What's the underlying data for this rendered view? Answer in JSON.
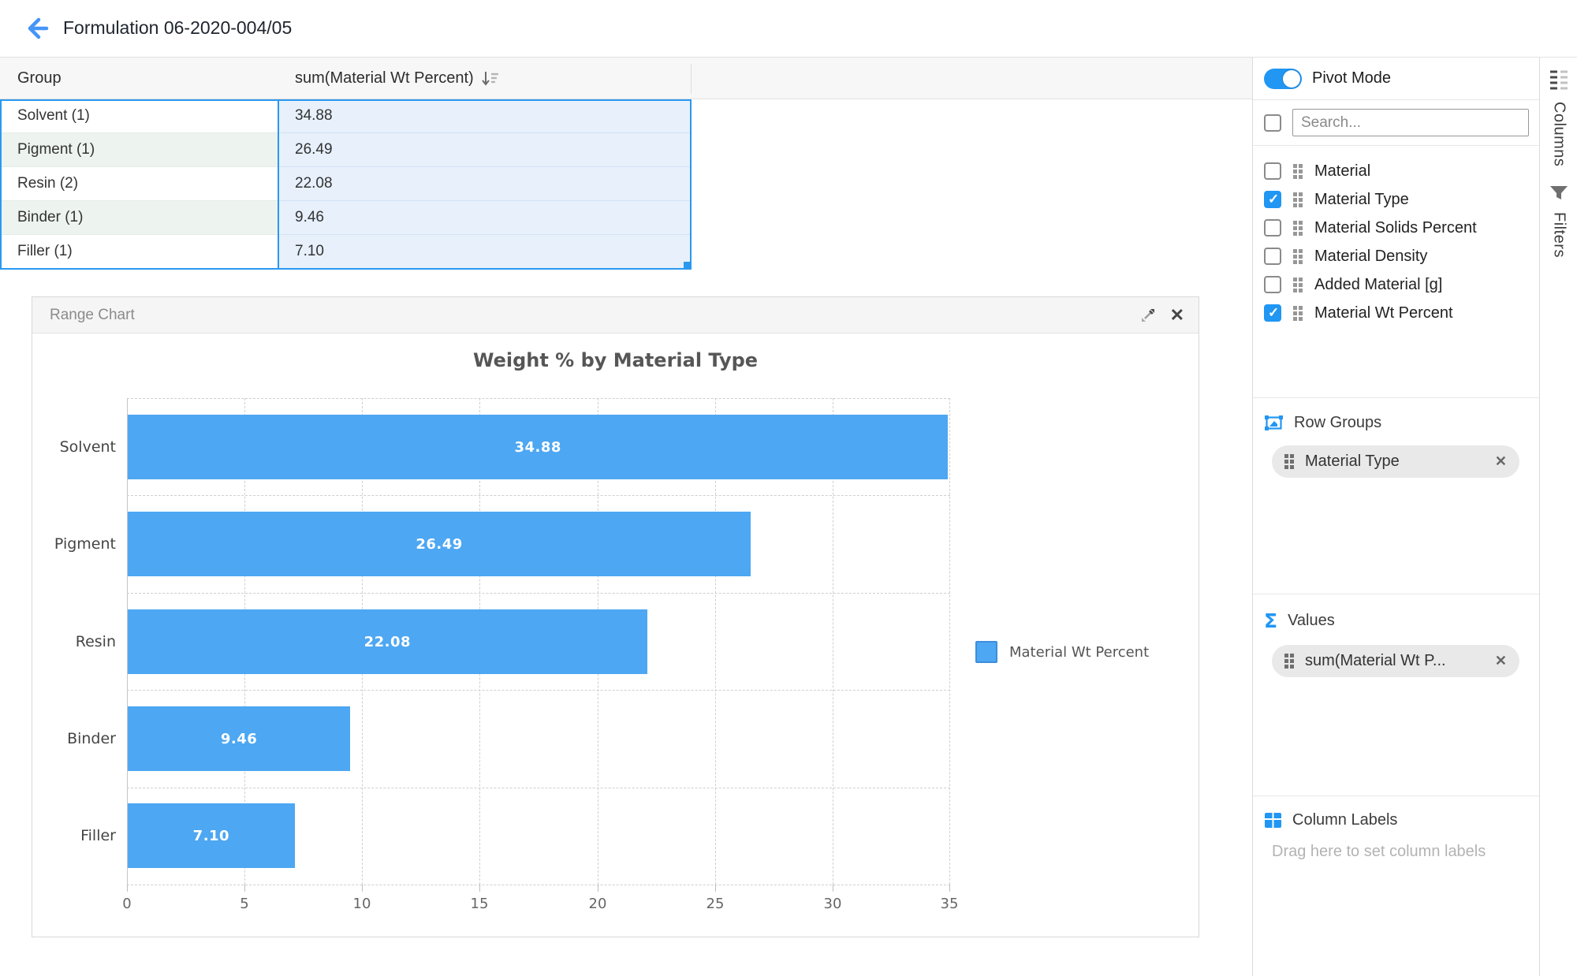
{
  "app_header": {
    "title": "Formulation 06-2020-004/05"
  },
  "table": {
    "group_header": "Group",
    "value_header": "sum(Material Wt Percent)",
    "sort_state": "desc",
    "rows": [
      {
        "group": "Solvent (1)",
        "value": "34.88"
      },
      {
        "group": "Pigment (1)",
        "value": "26.49"
      },
      {
        "group": "Resin (2)",
        "value": "22.08"
      },
      {
        "group": "Binder (1)",
        "value": "9.46"
      },
      {
        "group": "Filler (1)",
        "value": "7.10"
      }
    ]
  },
  "chart_panel": {
    "title": "Range Chart"
  },
  "chart_data": {
    "type": "bar",
    "orientation": "horizontal",
    "title": "Weight % by Material Type",
    "categories": [
      "Solvent",
      "Pigment",
      "Resin",
      "Binder",
      "Filler"
    ],
    "values": [
      34.88,
      26.49,
      22.08,
      9.46,
      7.1
    ],
    "value_labels": [
      "34.88",
      "26.49",
      "22.08",
      "9.46",
      "7.10"
    ],
    "series": [
      {
        "name": "Material Wt Percent",
        "color": "#4da7f2"
      }
    ],
    "legend_label": "Material Wt Percent",
    "legend_position": "right",
    "xlabel": "",
    "ylabel": "",
    "xlim": [
      0,
      35
    ],
    "xticks": [
      0,
      5,
      10,
      15,
      20,
      25,
      30,
      35
    ],
    "grid": "dashed"
  },
  "sidebar": {
    "pivot_mode": {
      "label": "Pivot Mode",
      "enabled": true
    },
    "search": {
      "placeholder": "Search...",
      "select_all_checked": false
    },
    "columns": [
      {
        "label": "Material",
        "checked": false
      },
      {
        "label": "Material Type",
        "checked": true
      },
      {
        "label": "Material Solids Percent",
        "checked": false
      },
      {
        "label": "Material Density",
        "checked": false
      },
      {
        "label": "Added Material [g]",
        "checked": false
      },
      {
        "label": "Material Wt Percent",
        "checked": true
      }
    ],
    "row_groups": {
      "title": "Row Groups",
      "chip": "Material Type"
    },
    "values_section": {
      "title": "Values",
      "chip": "sum(Material Wt P..."
    },
    "column_labels": {
      "title": "Column Labels",
      "placeholder": "Drag here to set column labels"
    }
  },
  "side_tabs": [
    {
      "label": "Columns",
      "active": true
    },
    {
      "label": "Filters",
      "active": false
    }
  ],
  "colors": {
    "accent": "#2196f3",
    "bar": "#4da7f2",
    "selection_border": "#2b98f0",
    "back_arrow": "#4695f7"
  }
}
